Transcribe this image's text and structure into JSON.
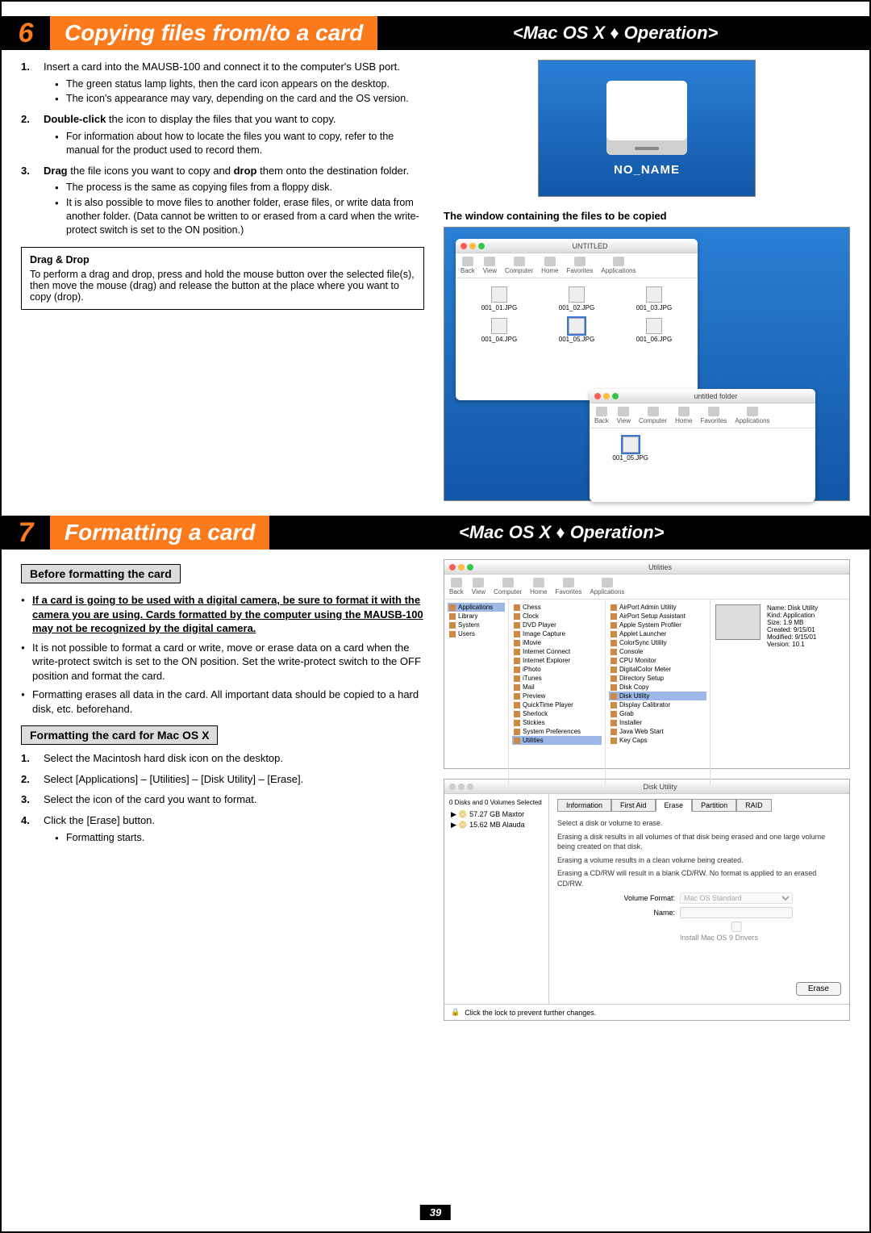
{
  "section6": {
    "num": "6",
    "title": "Copying files from/to a card",
    "os": "<Mac OS X ♦ Operation>",
    "step1_text": " Insert a card into the MAUSB-100 and connect it to the computer's USB port.",
    "s1_b1": "The green status lamp lights, then the card icon appears on the desktop.",
    "s1_b2": "The icon's appearance may vary, depending on the card and the OS version.",
    "step2_pre": "Double-click",
    "step2_text": " the icon to display the files that you want to copy.",
    "s2_b1": "For information about how to locate the files you want to copy, refer to the manual for the product used to record them.",
    "step3_pre": "Drag",
    "step3_mid": " the file icons you want to copy and ",
    "step3_drop": "drop",
    "step3_end": " them onto the destination folder.",
    "s3_b1": "The process is the same as copying files from a floppy disk.",
    "s3_b2": "It is also possible to move files to another folder, erase files, or write data from another folder. (Data cannot be written to or erased from a card when the write-protect switch is set to the ON position.)",
    "tip_title": "Drag & Drop",
    "tip_body": "To perform a drag and drop, press and hold the mouse button over the selected file(s), then move the mouse (drag) and release the button at the place where you want to copy (drop).",
    "drive_label": "NO_NAME",
    "caption1": "The window containing the files to be copied",
    "finder_title_top": "UNTITLED",
    "finder_title_bot": "untitled folder",
    "tb_back": "Back",
    "tb_view": "View",
    "tb_computer": "Computer",
    "tb_home": "Home",
    "tb_favorites": "Favorites",
    "tb_applications": "Applications",
    "files": [
      "001_01.JPG",
      "001_02.JPG",
      "001_03.JPG",
      "001_04.JPG",
      "001_05.JPG",
      "001_06.JPG"
    ],
    "bot_file": "001_05.JPG"
  },
  "section7": {
    "num": "7",
    "title": "Formatting a card",
    "os": "<Mac OS X ♦ Operation>",
    "sub1": "Before formatting the card",
    "b1": "If a card is going to be used with a digital camera, be sure to format it with the camera you are using. Cards formatted by the computer using the MAUSB-100 may not be recognized by the digital camera.",
    "b2": "It is not possible to format a card or write, move or erase data on a card when the write-protect switch is set to the ON position. Set the write-protect switch to the OFF position and format the card.",
    "b3": "Formatting erases all data in the card. All important data should be copied to a hard disk, etc. beforehand.",
    "sub2": "Formatting the card for Mac OS X",
    "s1": "Select the Macintosh hard disk icon on the desktop.",
    "s2": "Select [Applications] – [Utilities] – [Disk Utility] – [Erase].",
    "s3": "Select the icon of the card you want to format.",
    "s4": "Click the [Erase] button.",
    "s4_b": "Formatting starts.",
    "util_title": "Utilities",
    "col1": [
      "Applications",
      "Library",
      "System",
      "Users"
    ],
    "col2": [
      "Chess",
      "Clock",
      "DVD Player",
      "Image Capture",
      "iMovie",
      "Internet Connect",
      "Internet Explorer",
      "iPhoto",
      "iTunes",
      "Mail",
      "Preview",
      "QuickTime Player",
      "Sherlock",
      "Stickies",
      "System Preferences",
      "Utilities"
    ],
    "col3": [
      "AirPort Admin Utility",
      "AirPort Setup Assistant",
      "Apple System Profiler",
      "Applet Launcher",
      "ColorSync Utility",
      "Console",
      "CPU Monitor",
      "DigitalColor Meter",
      "Directory Setup",
      "Disk Copy",
      "Disk Utility",
      "Display Calibrator",
      "Grab",
      "Installer",
      "Java Web Start",
      "Key Caps"
    ],
    "info_name": "Name: Disk Utility",
    "info_kind": "Kind: Application",
    "info_size": "Size: 1.9 MB",
    "info_created": "Created: 9/15/01",
    "info_modified": "Modified: 9/15/01",
    "info_version": "Version: 10.1",
    "du_title": "Disk Utility",
    "du_sidebar_hdr": "0 Disks and 0 Volumes Selected",
    "du_disk1": "57.27 GB Maxtor",
    "du_disk2": "15.62 MB Alauda",
    "tabs": [
      "Information",
      "First Aid",
      "Erase",
      "Partition",
      "RAID"
    ],
    "du_l1": "Select a disk or volume to erase.",
    "du_l2": "Erasing a disk results in all volumes of that disk being erased and one large volume being created on that disk.",
    "du_l3": "Erasing a volume results in a clean volume being created.",
    "du_l4": "Erasing a CD/RW will result in a blank CD/RW. No format is applied to an erased CD/RW.",
    "du_vf_label": "Volume Format:",
    "du_vf_value": "Mac OS Standard",
    "du_name_label": "Name:",
    "du_install": "Install Mac OS 9 Drivers",
    "erase_btn": "Erase",
    "lock": "Click the lock to prevent further changes."
  },
  "pagenum": "39"
}
